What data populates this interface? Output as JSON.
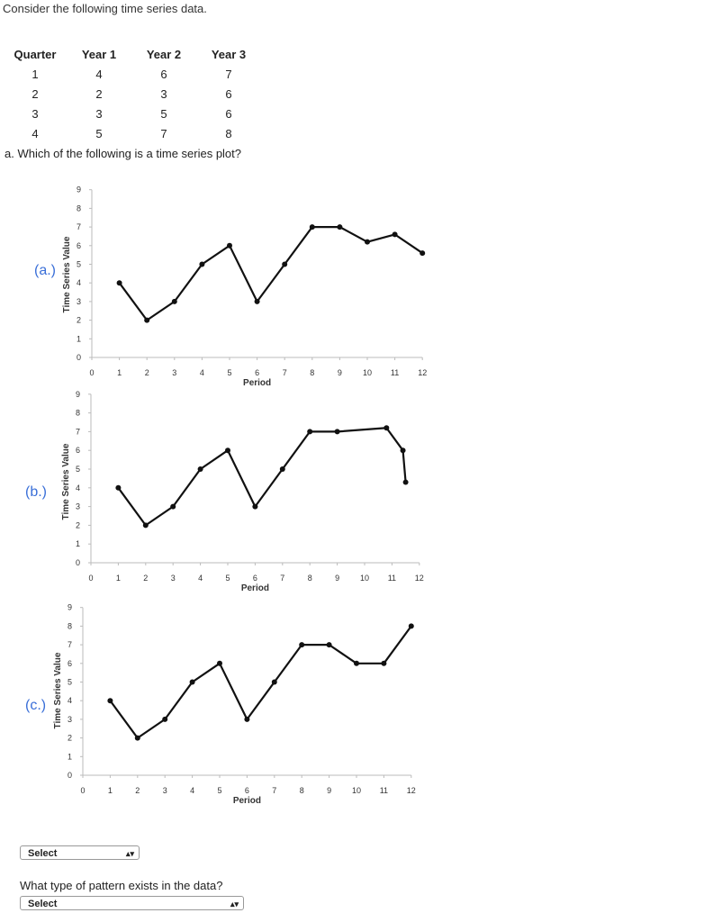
{
  "intro": "Consider the following time series data.",
  "table": {
    "headers": [
      "Quarter",
      "Year 1",
      "Year 2",
      "Year 3"
    ],
    "rows": [
      [
        "1",
        "4",
        "6",
        "7"
      ],
      [
        "2",
        "2",
        "3",
        "6"
      ],
      [
        "3",
        "3",
        "5",
        "6"
      ],
      [
        "4",
        "5",
        "7",
        "8"
      ]
    ]
  },
  "question_a": "a. Which of the following is a time series plot?",
  "options": [
    {
      "label": "(a.)"
    },
    {
      "label": "(b.)"
    },
    {
      "label": "(c.)"
    }
  ],
  "chart_data": [
    {
      "type": "line",
      "xlabel": "Period",
      "ylabel": "Time Series Value",
      "xticks": [
        "0",
        "1",
        "2",
        "3",
        "4",
        "5",
        "6",
        "7",
        "8",
        "9",
        "10",
        "11",
        "12"
      ],
      "yticks": [
        "0",
        "1",
        "2",
        "3",
        "4",
        "5",
        "6",
        "7",
        "8",
        "9"
      ],
      "xlim": [
        0,
        12
      ],
      "ylim": [
        0,
        9
      ],
      "x": [
        1,
        2,
        3,
        4,
        5,
        6,
        7,
        8,
        9,
        10,
        11,
        12
      ],
      "y": [
        4,
        2,
        3,
        5,
        6,
        3,
        5,
        7,
        7,
        6.2,
        6.6,
        5.6
      ]
    },
    {
      "type": "line",
      "xlabel": "Period",
      "ylabel": "Time Series Value",
      "xticks": [
        "0",
        "1",
        "2",
        "3",
        "4",
        "5",
        "6",
        "7",
        "8",
        "9",
        "10",
        "11",
        "12"
      ],
      "yticks": [
        "0",
        "1",
        "2",
        "3",
        "4",
        "5",
        "6",
        "7",
        "8",
        "9"
      ],
      "xlim": [
        0,
        12
      ],
      "ylim": [
        0,
        9
      ],
      "x": [
        1,
        2,
        3,
        4,
        5,
        6,
        7,
        8,
        9,
        10.8,
        11.4,
        11.5
      ],
      "y": [
        4,
        2,
        3,
        5,
        6,
        3,
        5,
        7,
        7,
        7.2,
        6,
        4.3
      ]
    },
    {
      "type": "line",
      "xlabel": "Period",
      "ylabel": "Time Series Value",
      "xticks": [
        "0",
        "1",
        "2",
        "3",
        "4",
        "5",
        "6",
        "7",
        "8",
        "9",
        "10",
        "11",
        "12"
      ],
      "yticks": [
        "0",
        "1",
        "2",
        "3",
        "4",
        "5",
        "6",
        "7",
        "8",
        "9"
      ],
      "xlim": [
        0,
        12
      ],
      "ylim": [
        0,
        9
      ],
      "x": [
        1,
        2,
        3,
        4,
        5,
        6,
        7,
        8,
        9,
        10,
        11,
        12
      ],
      "y": [
        4,
        2,
        3,
        5,
        6,
        3,
        5,
        7,
        7,
        6,
        6,
        8
      ]
    }
  ],
  "select1": {
    "label": "Select"
  },
  "question_b": "What type of pattern exists in the data?",
  "select2": {
    "label": "Select"
  }
}
